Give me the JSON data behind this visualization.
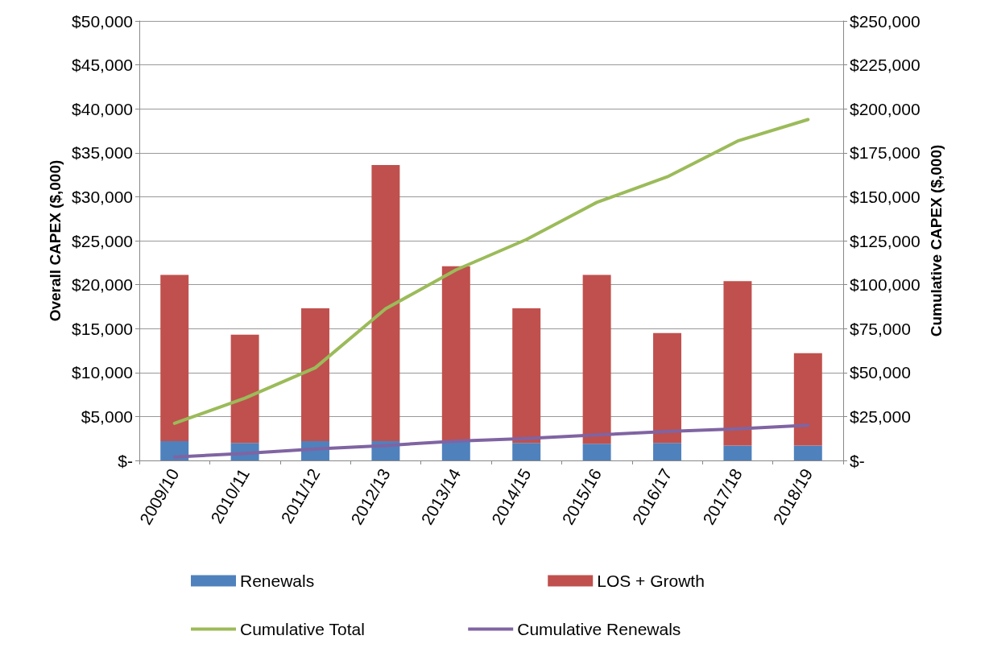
{
  "chart_data": {
    "type": "bar",
    "stacked": true,
    "ylabel": "Overall CAPEX ($,000)",
    "y2label": "Cumulative CAPEX ($,000)",
    "categories": [
      "2009/10",
      "2010/11",
      "2011/12",
      "2012/13",
      "2013/14",
      "2014/15",
      "2015/16",
      "2016/17",
      "2017/18",
      "2018/19"
    ],
    "series": [
      {
        "name": "Renewals",
        "color": "#4f81bd",
        "values": [
          2200,
          2000,
          2200,
          2200,
          2200,
          2000,
          1900,
          2000,
          1700,
          1700
        ]
      },
      {
        "name": "LOS + Growth",
        "color": "#c0504d",
        "values": [
          18900,
          12300,
          15100,
          31400,
          19900,
          15300,
          19200,
          12500,
          18700,
          10500
        ]
      },
      {
        "name": "Cumulative Total",
        "type": "line",
        "axis": "y2",
        "color": "#9bbb59",
        "values": [
          21100,
          35400,
          52700,
          86300,
          108400,
          125700,
          146800,
          161300,
          181700,
          193900
        ]
      },
      {
        "name": "Cumulative Renewals",
        "type": "line",
        "axis": "y2",
        "color": "#8064a2",
        "values": [
          2000,
          4000,
          6500,
          8500,
          11000,
          12500,
          14500,
          16500,
          18000,
          20000
        ]
      }
    ],
    "ylim": [
      0,
      50000
    ],
    "yticks": [
      {
        "value": 0,
        "label": "$-"
      },
      {
        "value": 5000,
        "label": "$5,000"
      },
      {
        "value": 10000,
        "label": "$10,000"
      },
      {
        "value": 15000,
        "label": "$15,000"
      },
      {
        "value": 20000,
        "label": "$20,000"
      },
      {
        "value": 25000,
        "label": "$25,000"
      },
      {
        "value": 30000,
        "label": "$30,000"
      },
      {
        "value": 35000,
        "label": "$35,000"
      },
      {
        "value": 40000,
        "label": "$40,000"
      },
      {
        "value": 45000,
        "label": "$45,000"
      },
      {
        "value": 50000,
        "label": "$50,000"
      }
    ],
    "y2lim": [
      0,
      250000
    ],
    "y2ticks": [
      {
        "value": 0,
        "label": "$-"
      },
      {
        "value": 25000,
        "label": "$25,000"
      },
      {
        "value": 50000,
        "label": "$50,000"
      },
      {
        "value": 75000,
        "label": "$75,000"
      },
      {
        "value": 100000,
        "label": "$100,000"
      },
      {
        "value": 125000,
        "label": "$125,000"
      },
      {
        "value": 150000,
        "label": "$150,000"
      },
      {
        "value": 175000,
        "label": "$175,000"
      },
      {
        "value": 200000,
        "label": "$200,000"
      },
      {
        "value": 225000,
        "label": "$225,000"
      },
      {
        "value": 250000,
        "label": "$250,000"
      }
    ],
    "grid": "y",
    "legend": "bottom",
    "marker": "none",
    "line_style": "solid"
  }
}
